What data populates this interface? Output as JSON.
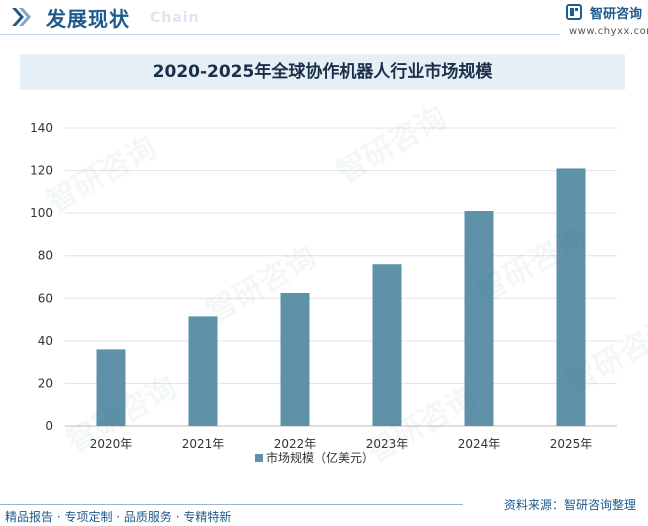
{
  "header": {
    "title": "发展现状",
    "subtitle": "Chain",
    "logo_name": "智研咨询",
    "logo_url": "www.chyxx.com"
  },
  "watermark": "智研咨询",
  "colors": {
    "bar": "#5f92a8",
    "brand": "#1f5a8c",
    "band": "#e6eef6"
  },
  "chart_data": {
    "type": "bar",
    "title": "2020-2025年全球协作机器人行业市场规模",
    "categories": [
      "2020年",
      "2021年",
      "2022年",
      "2023年",
      "2024年",
      "2025年"
    ],
    "series": [
      {
        "name": "市场规模（亿美元）",
        "values": [
          36,
          51.5,
          62.5,
          76,
          101,
          121
        ]
      }
    ],
    "ylim": [
      0,
      140
    ],
    "yticks": [
      0,
      20,
      40,
      60,
      80,
      100,
      120,
      140
    ],
    "grid": true,
    "legend": "bottom",
    "xlabel": "",
    "ylabel": ""
  },
  "footer": {
    "left": "精品报告 · 专项定制 · 品质服务 · 专精特新",
    "right": "资料来源：智研咨询整理"
  }
}
